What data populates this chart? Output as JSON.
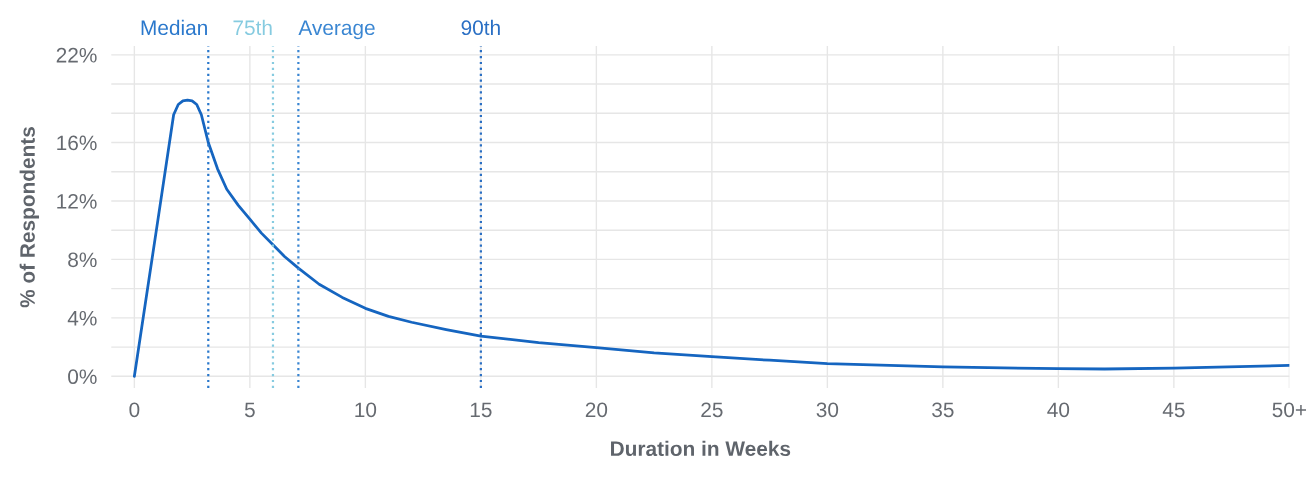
{
  "chart_data": {
    "type": "line",
    "xlabel": "Duration in Weeks",
    "ylabel": "% of Respondents",
    "x": [
      0,
      1,
      1.7,
      1.9,
      2.1,
      2.3,
      2.5,
      2.7,
      2.9,
      3.2,
      3.6,
      4,
      4.5,
      5,
      5.5,
      6,
      6.5,
      7.1,
      8,
      9,
      10,
      11,
      12,
      13.5,
      15,
      17.5,
      20,
      22.5,
      25,
      27.5,
      30,
      35,
      40,
      42,
      45,
      50
    ],
    "series": [
      {
        "color": "#1565c0",
        "values": [
          0,
          10.5,
          17.9,
          18.6,
          18.85,
          18.9,
          18.85,
          18.6,
          17.9,
          16.0,
          14.2,
          12.8,
          11.7,
          10.75,
          9.8,
          9.0,
          8.2,
          7.4,
          6.3,
          5.4,
          4.65,
          4.1,
          3.7,
          3.2,
          2.75,
          2.3,
          1.97,
          1.6,
          1.34,
          1.1,
          0.87,
          0.64,
          0.52,
          0.5,
          0.56,
          0.75
        ]
      }
    ],
    "xlim": [
      -1,
      50
    ],
    "xticks": [
      0,
      5,
      10,
      15,
      20,
      25,
      30,
      35,
      40,
      45,
      {
        "value": 50,
        "label": "50+"
      }
    ],
    "ylim": [
      -0.8,
      22.6
    ],
    "yticks": [
      {
        "value": 0,
        "label": "0%"
      },
      {
        "value": 2,
        "label": null
      },
      {
        "value": 4,
        "label": "4%"
      },
      {
        "value": 6,
        "label": null
      },
      {
        "value": 8,
        "label": "8%"
      },
      {
        "value": 10,
        "label": null
      },
      {
        "value": 12,
        "label": "12%"
      },
      {
        "value": 14,
        "label": null
      },
      {
        "value": 16,
        "label": "16%"
      },
      {
        "value": 18,
        "label": null
      },
      {
        "value": 20,
        "label": null
      },
      {
        "value": 22,
        "label": "22%"
      }
    ],
    "grid": true,
    "line_style": "solid",
    "marker": "none",
    "ref_lines": [
      {
        "axis": "x",
        "value": 3.2,
        "label": "Median",
        "color": "#2a78cc",
        "line_style": "dotted"
      },
      {
        "axis": "x",
        "value": 6,
        "label": "75th",
        "color": "#86cbe0",
        "line_style": "dotted"
      },
      {
        "axis": "x",
        "value": 7.1,
        "label": "Average",
        "color": "#3a86d2",
        "line_style": "dotted"
      },
      {
        "axis": "x",
        "value": 15,
        "label": "90th",
        "color": "#2a6fc4",
        "line_style": "dotted"
      }
    ]
  }
}
